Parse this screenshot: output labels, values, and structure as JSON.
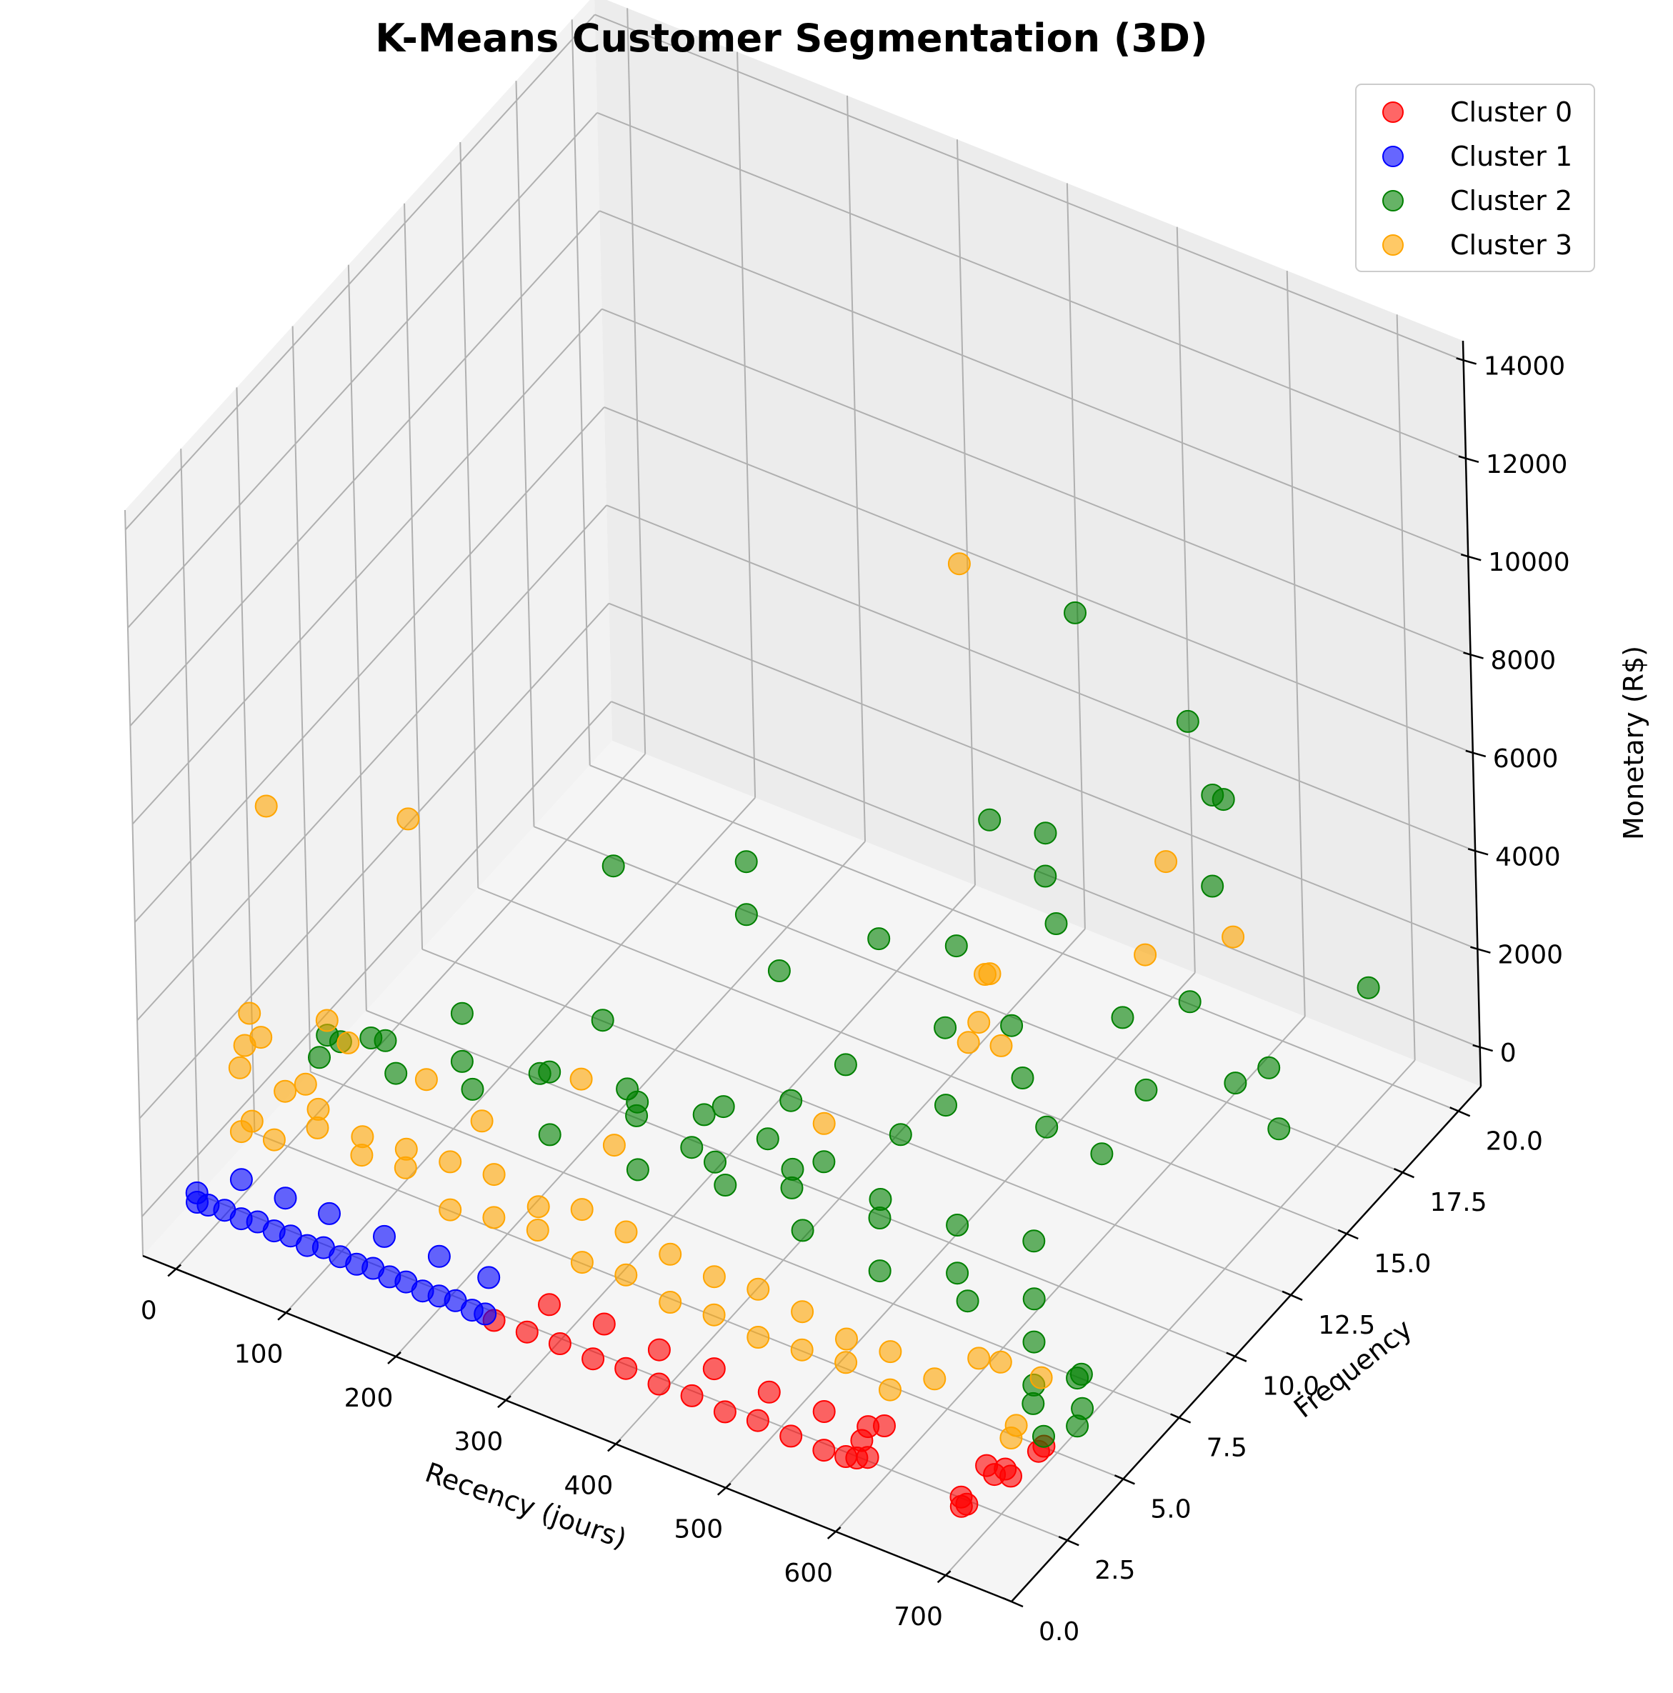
{
  "chart_data": {
    "type": "scatter",
    "projection": "3d",
    "title": "K-Means Customer Segmentation (3D)",
    "xlabel": "Recency (jours)",
    "ylabel": "Frequency",
    "zlabel": "Monetary (R$)",
    "xlim": [
      -30,
      760
    ],
    "ylim": [
      0,
      21
    ],
    "zlim": [
      -800,
      14400
    ],
    "xticks": [
      "0",
      "100",
      "200",
      "300",
      "400",
      "500",
      "600",
      "700"
    ],
    "yticks": [
      "0.0",
      "2.5",
      "5.0",
      "7.5",
      "10.0",
      "12.5",
      "15.0",
      "17.5",
      "20.0"
    ],
    "zticks": [
      "0",
      "2000",
      "4000",
      "6000",
      "8000",
      "10000",
      "12000",
      "14000"
    ],
    "grid": true,
    "legend_position": "top-right",
    "series": [
      {
        "name": "Cluster 0",
        "color": "#ff0000",
        "points": [
          [
            270,
            1,
            60
          ],
          [
            300,
            1,
            90
          ],
          [
            330,
            1,
            120
          ],
          [
            360,
            1,
            80
          ],
          [
            390,
            1,
            150
          ],
          [
            420,
            1,
            100
          ],
          [
            450,
            1,
            130
          ],
          [
            480,
            1,
            70
          ],
          [
            510,
            1,
            160
          ],
          [
            540,
            1,
            110
          ],
          [
            570,
            1,
            90
          ],
          [
            590,
            1,
            140
          ],
          [
            600,
            1,
            200
          ],
          [
            605,
            1,
            600
          ],
          [
            610,
            1,
            300
          ],
          [
            300,
            2,
            150
          ],
          [
            350,
            2,
            200
          ],
          [
            400,
            2,
            120
          ],
          [
            450,
            2,
            180
          ],
          [
            500,
            2,
            150
          ],
          [
            550,
            2,
            200
          ],
          [
            590,
            2,
            250
          ],
          [
            605,
            2,
            400
          ],
          [
            695,
            1,
            60
          ],
          [
            695,
            1,
            250
          ],
          [
            698,
            2,
            420
          ],
          [
            700,
            1,
            150
          ],
          [
            705,
            2,
            300
          ],
          [
            715,
            2,
            500
          ],
          [
            720,
            2,
            400
          ],
          [
            725,
            3,
            450
          ],
          [
            730,
            3,
            600
          ]
        ]
      },
      {
        "name": "Cluster 1",
        "color": "#0000ff",
        "points": [
          [
            0,
            1,
            60
          ],
          [
            10,
            1,
            90
          ],
          [
            25,
            1,
            120
          ],
          [
            40,
            1,
            80
          ],
          [
            55,
            1,
            150
          ],
          [
            70,
            1,
            100
          ],
          [
            85,
            1,
            130
          ],
          [
            100,
            1,
            70
          ],
          [
            115,
            1,
            160
          ],
          [
            130,
            1,
            110
          ],
          [
            145,
            1,
            90
          ],
          [
            160,
            1,
            140
          ],
          [
            175,
            1,
            100
          ],
          [
            190,
            1,
            130
          ],
          [
            205,
            1,
            80
          ],
          [
            220,
            1,
            110
          ],
          [
            235,
            1,
            150
          ],
          [
            250,
            1,
            90
          ],
          [
            262,
            1,
            120
          ],
          [
            0,
            1,
            250
          ],
          [
            20,
            2,
            200
          ],
          [
            60,
            2,
            180
          ],
          [
            100,
            2,
            220
          ],
          [
            150,
            2,
            200
          ],
          [
            200,
            2,
            240
          ],
          [
            245,
            2,
            210
          ]
        ]
      },
      {
        "name": "Cluster 2",
        "color": "#008000",
        "points": [
          [
            10,
            6,
            600
          ],
          [
            30,
            6,
            1100
          ],
          [
            50,
            7,
            800
          ],
          [
            80,
            6,
            900
          ],
          [
            100,
            8,
            1300
          ],
          [
            120,
            7,
            1000
          ],
          [
            150,
            6,
            1200
          ],
          [
            170,
            8,
            700
          ],
          [
            200,
            7,
            1500
          ],
          [
            220,
            6,
            900
          ],
          [
            250,
            8,
            1100
          ],
          [
            280,
            7,
            1600
          ],
          [
            300,
            6,
            900
          ],
          [
            320,
            8,
            1200
          ],
          [
            350,
            7,
            1000
          ],
          [
            380,
            6,
            1300
          ],
          [
            400,
            8,
            800
          ],
          [
            420,
            7,
            1100
          ],
          [
            450,
            6,
            1000
          ],
          [
            480,
            8,
            900
          ],
          [
            500,
            7,
            1200
          ],
          [
            520,
            6,
            800
          ],
          [
            550,
            8,
            1000
          ],
          [
            570,
            7,
            700
          ],
          [
            600,
            6,
            900
          ],
          [
            620,
            8,
            1300
          ],
          [
            640,
            7,
            800
          ],
          [
            660,
            6,
            600
          ],
          [
            680,
            5,
            400
          ],
          [
            700,
            4,
            700
          ],
          [
            720,
            5,
            900
          ],
          [
            740,
            4,
            600
          ],
          [
            730,
            3,
            800
          ],
          [
            745,
            4,
            1000
          ],
          [
            745,
            4,
            1700
          ],
          [
            60,
            4,
            2500
          ],
          [
            100,
            4,
            2800
          ],
          [
            250,
            7,
            3000
          ],
          [
            300,
            6,
            2000
          ],
          [
            350,
            6,
            1800
          ],
          [
            400,
            8,
            2200
          ],
          [
            450,
            7,
            1900
          ],
          [
            500,
            8,
            2400
          ],
          [
            380,
            6,
            2900
          ],
          [
            420,
            6,
            2600
          ],
          [
            500,
            10,
            2000
          ],
          [
            550,
            12,
            1000
          ],
          [
            600,
            12,
            900
          ],
          [
            600,
            14,
            1200
          ],
          [
            640,
            16,
            700
          ],
          [
            650,
            17,
            600
          ],
          [
            700,
            15,
            800
          ],
          [
            680,
            20,
            1000
          ],
          [
            200,
            10,
            4200
          ],
          [
            280,
            12,
            4000
          ],
          [
            300,
            11,
            3600
          ],
          [
            350,
            10,
            3400
          ],
          [
            400,
            12,
            3500
          ],
          [
            450,
            13,
            3300
          ],
          [
            480,
            11,
            2900
          ],
          [
            500,
            15,
            3200
          ],
          [
            520,
            12,
            2800
          ],
          [
            550,
            11,
            2500
          ],
          [
            580,
            14,
            2500
          ],
          [
            600,
            16,
            2000
          ],
          [
            420,
            16,
            4100
          ],
          [
            450,
            17,
            3600
          ],
          [
            470,
            16,
            3400
          ],
          [
            430,
            9,
            2700
          ],
          [
            520,
            21,
            3000
          ],
          [
            560,
            19,
            2500
          ],
          [
            440,
            19,
            7000
          ],
          [
            520,
            20,
            5000
          ],
          [
            530,
            21,
            3000
          ]
        ]
      },
      {
        "name": "Cluster 3",
        "color": "#ffa500",
        "points": [
          [
            0,
            3,
            500
          ],
          [
            10,
            3,
            800
          ],
          [
            20,
            4,
            1000
          ],
          [
            30,
            3,
            600
          ],
          [
            50,
            4,
            900
          ],
          [
            70,
            3,
            1200
          ],
          [
            90,
            4,
            700
          ],
          [
            110,
            3,
            1000
          ],
          [
            130,
            4,
            800
          ],
          [
            150,
            3,
            1100
          ],
          [
            170,
            4,
            900
          ],
          [
            190,
            3,
            600
          ],
          [
            210,
            4,
            1000
          ],
          [
            230,
            3,
            800
          ],
          [
            250,
            4,
            700
          ],
          [
            270,
            3,
            900
          ],
          [
            290,
            4,
            1000
          ],
          [
            310,
            3,
            600
          ],
          [
            330,
            4,
            900
          ],
          [
            350,
            3,
            700
          ],
          [
            370,
            4,
            800
          ],
          [
            390,
            3,
            500
          ],
          [
            410,
            4,
            700
          ],
          [
            430,
            3,
            600
          ],
          [
            450,
            4,
            800
          ],
          [
            470,
            3,
            500
          ],
          [
            490,
            4,
            700
          ],
          [
            510,
            3,
            600
          ],
          [
            530,
            4,
            500
          ],
          [
            550,
            3,
            700
          ],
          [
            570,
            4,
            600
          ],
          [
            590,
            3,
            500
          ],
          [
            610,
            4,
            400
          ],
          [
            630,
            5,
            500
          ],
          [
            650,
            5,
            600
          ],
          [
            700,
            3,
            500
          ],
          [
            705,
            3,
            800
          ],
          [
            708,
            4,
            1300
          ],
          [
            0,
            3,
            1800
          ],
          [
            5,
            3,
            2300
          ],
          [
            10,
            3,
            3000
          ],
          [
            20,
            3,
            2600
          ],
          [
            60,
            3,
            2000
          ],
          [
            100,
            3,
            3200
          ],
          [
            60,
            4,
            2800
          ],
          [
            150,
            4,
            2400
          ],
          [
            200,
            4,
            2000
          ],
          [
            250,
            6,
            2300
          ],
          [
            300,
            5,
            1900
          ],
          [
            430,
            8,
            2000
          ],
          [
            480,
            12,
            2100
          ],
          [
            510,
            12,
            2300
          ],
          [
            490,
            12,
            2600
          ],
          [
            480,
            13,
            3000
          ],
          [
            560,
            16,
            2600
          ],
          [
            560,
            17,
            4000
          ],
          [
            620,
            17,
            3000
          ],
          [
            560,
            9,
            5700
          ],
          [
            30,
            3,
            7400
          ],
          [
            160,
            3,
            8300
          ],
          [
            440,
            14,
            10500
          ]
        ]
      }
    ]
  }
}
